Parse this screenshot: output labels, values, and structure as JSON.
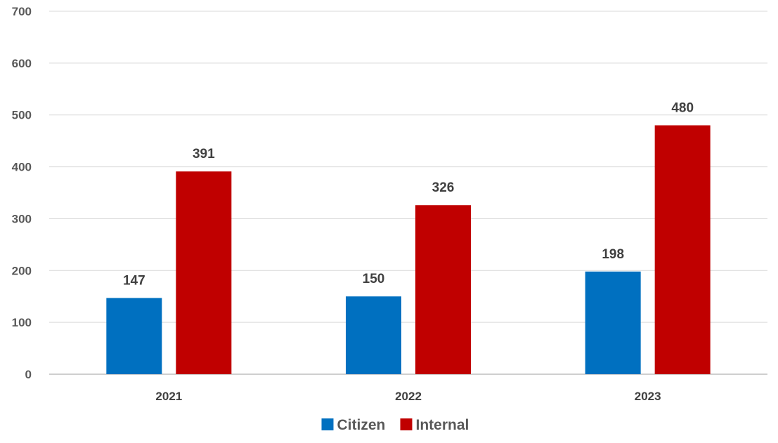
{
  "chart_data": {
    "type": "bar",
    "categories": [
      "2021",
      "2022",
      "2023"
    ],
    "series": [
      {
        "name": "Citizen",
        "values": [
          147,
          150,
          198
        ],
        "color": "#0070C0"
      },
      {
        "name": "Internal",
        "values": [
          391,
          326,
          480
        ],
        "color": "#C00000"
      }
    ],
    "ylim": [
      0,
      700
    ],
    "yticks": [
      0,
      100,
      200,
      300,
      400,
      500,
      600,
      700
    ],
    "title": "",
    "xlabel": "",
    "ylabel": "",
    "grid": true,
    "legend": "bottom",
    "data_labels": true
  }
}
